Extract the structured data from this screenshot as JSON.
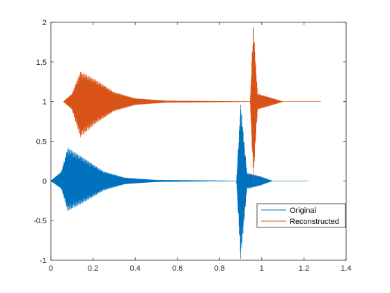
{
  "chart_data": {
    "type": "line",
    "title": "",
    "xlabel": "",
    "ylabel": "",
    "xlim": [
      0,
      1.4
    ],
    "ylim": [
      -1,
      2
    ],
    "xticks": [
      0,
      0.2,
      0.4,
      0.6,
      0.8,
      1,
      1.2,
      1.4
    ],
    "xtick_labels": [
      "0",
      "0.2",
      "0.4",
      "0.6",
      "0.8",
      "1",
      "1.2",
      "1.4"
    ],
    "yticks": [
      -1,
      -0.5,
      0,
      0.5,
      1,
      1.5,
      2
    ],
    "ytick_labels": [
      "-1",
      "-0.5",
      "0",
      "0.5",
      "1",
      "1.5",
      "2"
    ],
    "grid": false,
    "legend_position": "bottom-right",
    "series": [
      {
        "name": "Original",
        "color": "#0072BD",
        "baseline": 0,
        "x_start": 0.0,
        "x_end": 1.22,
        "bursts": [
          {
            "onset": 0.0,
            "peak_time": 0.075,
            "peak_amplitude": 0.42,
            "decay_end": 0.6
          },
          {
            "onset": 0.888,
            "peak_time": 0.9,
            "peak_amplitude": 1.0,
            "decay_end": 1.05
          }
        ],
        "envelope_points": [
          {
            "x": 0.0,
            "upper": 0.0,
            "lower": 0.0
          },
          {
            "x": 0.05,
            "upper": 0.12,
            "lower": -0.1
          },
          {
            "x": 0.08,
            "upper": 0.42,
            "lower": -0.38
          },
          {
            "x": 0.15,
            "upper": 0.3,
            "lower": -0.28
          },
          {
            "x": 0.25,
            "upper": 0.12,
            "lower": -0.12
          },
          {
            "x": 0.35,
            "upper": 0.04,
            "lower": -0.04
          },
          {
            "x": 0.5,
            "upper": 0.01,
            "lower": -0.01
          },
          {
            "x": 0.88,
            "upper": 0.0,
            "lower": 0.0
          },
          {
            "x": 0.9,
            "upper": 1.0,
            "lower": -1.0
          },
          {
            "x": 0.93,
            "upper": 0.1,
            "lower": -0.1
          },
          {
            "x": 0.99,
            "upper": 0.06,
            "lower": -0.06
          },
          {
            "x": 1.05,
            "upper": 0.0,
            "lower": 0.0
          },
          {
            "x": 1.22,
            "upper": 0.0,
            "lower": 0.0
          }
        ]
      },
      {
        "name": "Reconstructed",
        "color": "#D95319",
        "baseline": 1,
        "x_start": 0.06,
        "x_end": 1.28,
        "bursts": [
          {
            "onset": 0.06,
            "peak_time": 0.14,
            "peak_amplitude": 0.38,
            "decay_end": 0.66
          },
          {
            "onset": 0.95,
            "peak_time": 0.96,
            "peak_amplitude": 1.0,
            "decay_end": 1.1
          }
        ],
        "envelope_points": [
          {
            "x": 0.06,
            "upper": 0.0,
            "lower": 0.0
          },
          {
            "x": 0.1,
            "upper": 0.1,
            "lower": -0.1
          },
          {
            "x": 0.14,
            "upper": 0.38,
            "lower": -0.45
          },
          {
            "x": 0.21,
            "upper": 0.28,
            "lower": -0.28
          },
          {
            "x": 0.3,
            "upper": 0.12,
            "lower": -0.12
          },
          {
            "x": 0.4,
            "upper": 0.04,
            "lower": -0.04
          },
          {
            "x": 0.55,
            "upper": 0.01,
            "lower": -0.01
          },
          {
            "x": 0.945,
            "upper": 0.0,
            "lower": 0.0
          },
          {
            "x": 0.96,
            "upper": 1.0,
            "lower": -1.0
          },
          {
            "x": 0.98,
            "upper": 0.1,
            "lower": -0.1
          },
          {
            "x": 1.03,
            "upper": 0.06,
            "lower": -0.06
          },
          {
            "x": 1.1,
            "upper": 0.0,
            "lower": 0.0
          },
          {
            "x": 1.28,
            "upper": 0.0,
            "lower": 0.0
          }
        ]
      }
    ]
  }
}
